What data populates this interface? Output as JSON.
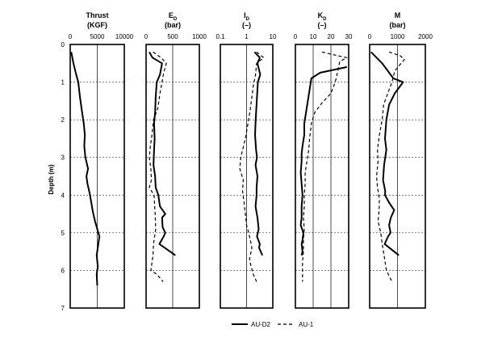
{
  "chart_data": {
    "type": "line",
    "ylabel": "Depth (m)",
    "y_axis": {
      "ticks": [
        "0",
        "1",
        "2",
        "3",
        "4",
        "5",
        "6",
        "7"
      ],
      "ylim": [
        0,
        7
      ],
      "inverted": true
    },
    "legend": {
      "placement": "bottom-center",
      "entries": [
        "AU-D2",
        "AU-1"
      ]
    },
    "panels": [
      {
        "id": "thrust",
        "title": "Thrust",
        "subtitle": "(KGF)",
        "scale": "linear",
        "xlim": [
          0,
          10000
        ],
        "ticks": [
          "0",
          "5000",
          "10000"
        ],
        "tick_values": [
          0,
          5000,
          10000
        ],
        "series": [
          {
            "name": "AU-D2",
            "style": "solid",
            "x": [
              200,
              600,
              1100,
              1500,
              1800,
              2200,
              2500,
              2700,
              2600,
              2800,
              3300,
              3000,
              3200,
              3600,
              3900,
              4200,
              4600,
              5000,
              5400,
              5200,
              4900,
              5100,
              4900,
              5000
            ],
            "y": [
              0.2,
              0.5,
              0.8,
              1.0,
              1.4,
              1.8,
              2.1,
              2.4,
              2.7,
              3.0,
              3.3,
              3.5,
              3.7,
              3.95,
              4.2,
              4.45,
              4.7,
              4.9,
              5.1,
              5.3,
              5.6,
              5.9,
              6.1,
              6.4
            ]
          }
        ]
      },
      {
        "id": "ed",
        "title": "E",
        "title_sub": "D",
        "subtitle": "(bar)",
        "scale": "linear",
        "xlim": [
          0,
          1000
        ],
        "ticks": [
          "0",
          "500",
          "1000"
        ],
        "tick_values": [
          0,
          500,
          1000
        ],
        "series": [
          {
            "name": "AU-D2",
            "style": "solid",
            "x": [
              60,
              120,
              300,
              260,
              200,
              180,
              170,
              150,
              160,
              150,
              140,
              170,
              180,
              230,
              250,
              260,
              360,
              300,
              310,
              360,
              330,
              250,
              550
            ],
            "y": [
              0.2,
              0.35,
              0.5,
              0.8,
              1.0,
              1.4,
              1.8,
              2.1,
              2.5,
              2.8,
              3.2,
              3.5,
              3.8,
              4.0,
              4.2,
              4.3,
              4.5,
              4.6,
              4.85,
              5.0,
              5.1,
              5.3,
              5.6
            ]
          }
        ],
        "series2": [
          {
            "name": "AU-1",
            "style": "dashed",
            "x": [
              130,
              280,
              380,
              330,
              300,
              260,
              220,
              140,
              110,
              80,
              60,
              90,
              100,
              60,
              150,
              170,
              180,
              140,
              130,
              100,
              90,
              200,
              320
            ],
            "y": [
              0.2,
              0.35,
              0.5,
              0.75,
              1.0,
              1.3,
              1.7,
              2.0,
              2.4,
              2.7,
              3.0,
              3.3,
              3.6,
              3.8,
              4.0,
              4.5,
              4.9,
              5.3,
              5.6,
              5.9,
              6.0,
              6.1,
              6.3
            ]
          }
        ]
      },
      {
        "id": "id",
        "title": "I",
        "title_sub": "D",
        "subtitle": "(–)",
        "scale": "log",
        "xlim": [
          0.1,
          10
        ],
        "ticks": [
          "0.1",
          "1",
          "10"
        ],
        "tick_values": [
          0.1,
          1,
          10
        ],
        "series": [
          {
            "name": "AU-D2",
            "style": "solid",
            "x": [
              2.0,
              3.2,
              2.6,
              3.3,
              2.7,
              2.5,
              2.3,
              2.2,
              2.1,
              2.3,
              2.5,
              2.2,
              2.6,
              2.4,
              2.4,
              2.2,
              2.6,
              2.9,
              2.5,
              3.2,
              3.0,
              4.0
            ],
            "y": [
              0.2,
              0.35,
              0.5,
              0.8,
              1.0,
              1.4,
              1.8,
              2.1,
              2.4,
              2.8,
              3.0,
              3.2,
              3.5,
              3.8,
              4.0,
              4.3,
              4.6,
              4.9,
              5.1,
              5.3,
              5.4,
              5.6
            ]
          }
        ],
        "series2": [
          {
            "name": "AU-1",
            "style": "dashed",
            "x": [
              2.4,
              4.5,
              2.4,
              2.2,
              1.8,
              1.6,
              1.4,
              1.2,
              0.9,
              0.6,
              0.55,
              0.75,
              0.7,
              0.8,
              0.9,
              1.0,
              1.2,
              1.4,
              1.6,
              1.3,
              1.5,
              1.8,
              2.4
            ],
            "y": [
              0.2,
              0.35,
              0.5,
              0.8,
              1.1,
              1.4,
              1.7,
              2.0,
              2.5,
              3.0,
              3.3,
              3.6,
              3.9,
              4.2,
              4.5,
              4.8,
              5.0,
              5.2,
              5.4,
              5.7,
              5.9,
              6.1,
              6.3
            ]
          }
        ]
      },
      {
        "id": "kd",
        "title": "K",
        "title_sub": "D",
        "subtitle": "(–)",
        "scale": "linear",
        "xlim": [
          0,
          30
        ],
        "ticks": [
          "0",
          "10",
          "20",
          "30"
        ],
        "tick_values": [
          0,
          10,
          20,
          30
        ],
        "series": [
          {
            "name": "AU-D2",
            "style": "solid",
            "x": [
              29,
              14,
              9,
              8,
              7,
              6,
              5,
              5,
              4,
              3.5,
              3.5,
              3,
              3.5,
              4,
              3.5,
              3.5,
              3,
              4.5,
              4,
              3.5,
              4,
              3.5
            ],
            "y": [
              0.6,
              0.75,
              0.9,
              1.2,
              1.5,
              1.8,
              2.1,
              2.4,
              2.7,
              2.9,
              3.1,
              3.4,
              3.7,
              4.0,
              4.3,
              4.6,
              4.8,
              5.0,
              5.2,
              5.3,
              5.5,
              5.6
            ]
          }
        ],
        "series2": [
          {
            "name": "AU-1",
            "style": "dashed",
            "x": [
              15,
              24,
              29,
              25,
              23,
              22,
              20,
              15,
              11,
              9,
              8,
              7.5,
              6.5,
              5.5,
              5.5,
              5,
              5,
              4.5,
              5,
              4.5,
              4.5,
              4,
              4,
              4
            ],
            "y": [
              0.2,
              0.3,
              0.35,
              0.45,
              0.9,
              1.05,
              1.3,
              1.55,
              1.8,
              2.1,
              2.5,
              2.8,
              3.1,
              3.4,
              3.7,
              4.0,
              4.3,
              4.6,
              4.9,
              5.2,
              5.5,
              5.8,
              6.0,
              6.3
            ]
          }
        ]
      },
      {
        "id": "m",
        "title": "M",
        "subtitle": "(bar)",
        "scale": "linear",
        "xlim": [
          0,
          2000
        ],
        "ticks": [
          "0",
          "1000",
          "2000"
        ],
        "tick_values": [
          0,
          1000,
          2000
        ],
        "series": [
          {
            "name": "AU-D2",
            "style": "solid",
            "x": [
              50,
              450,
              850,
              1200,
              900,
              700,
              600,
              550,
              600,
              520,
              480,
              560,
              550,
              700,
              880,
              760,
              700,
              750,
              660,
              540,
              1050
            ],
            "y": [
              0.2,
              0.5,
              0.9,
              1.0,
              1.3,
              1.6,
              2.0,
              2.5,
              2.8,
              3.2,
              3.6,
              3.9,
              4.0,
              4.2,
              4.4,
              4.6,
              4.8,
              5.0,
              5.1,
              5.3,
              5.6
            ]
          }
        ],
        "series2": [
          {
            "name": "AU-1",
            "style": "dashed",
            "x": [
              700,
              1100,
              1250,
              900,
              800,
              650,
              500,
              450,
              350,
              280,
              300,
              250,
              280,
              350,
              340,
              300,
              400,
              450,
              520,
              600,
              800
            ],
            "y": [
              0.2,
              0.3,
              0.4,
              0.7,
              1.0,
              1.3,
              1.6,
              2.0,
              2.4,
              2.8,
              3.1,
              3.5,
              3.8,
              4.1,
              4.4,
              4.7,
              5.0,
              5.3,
              5.6,
              6.0,
              6.3
            ]
          }
        ]
      }
    ]
  }
}
